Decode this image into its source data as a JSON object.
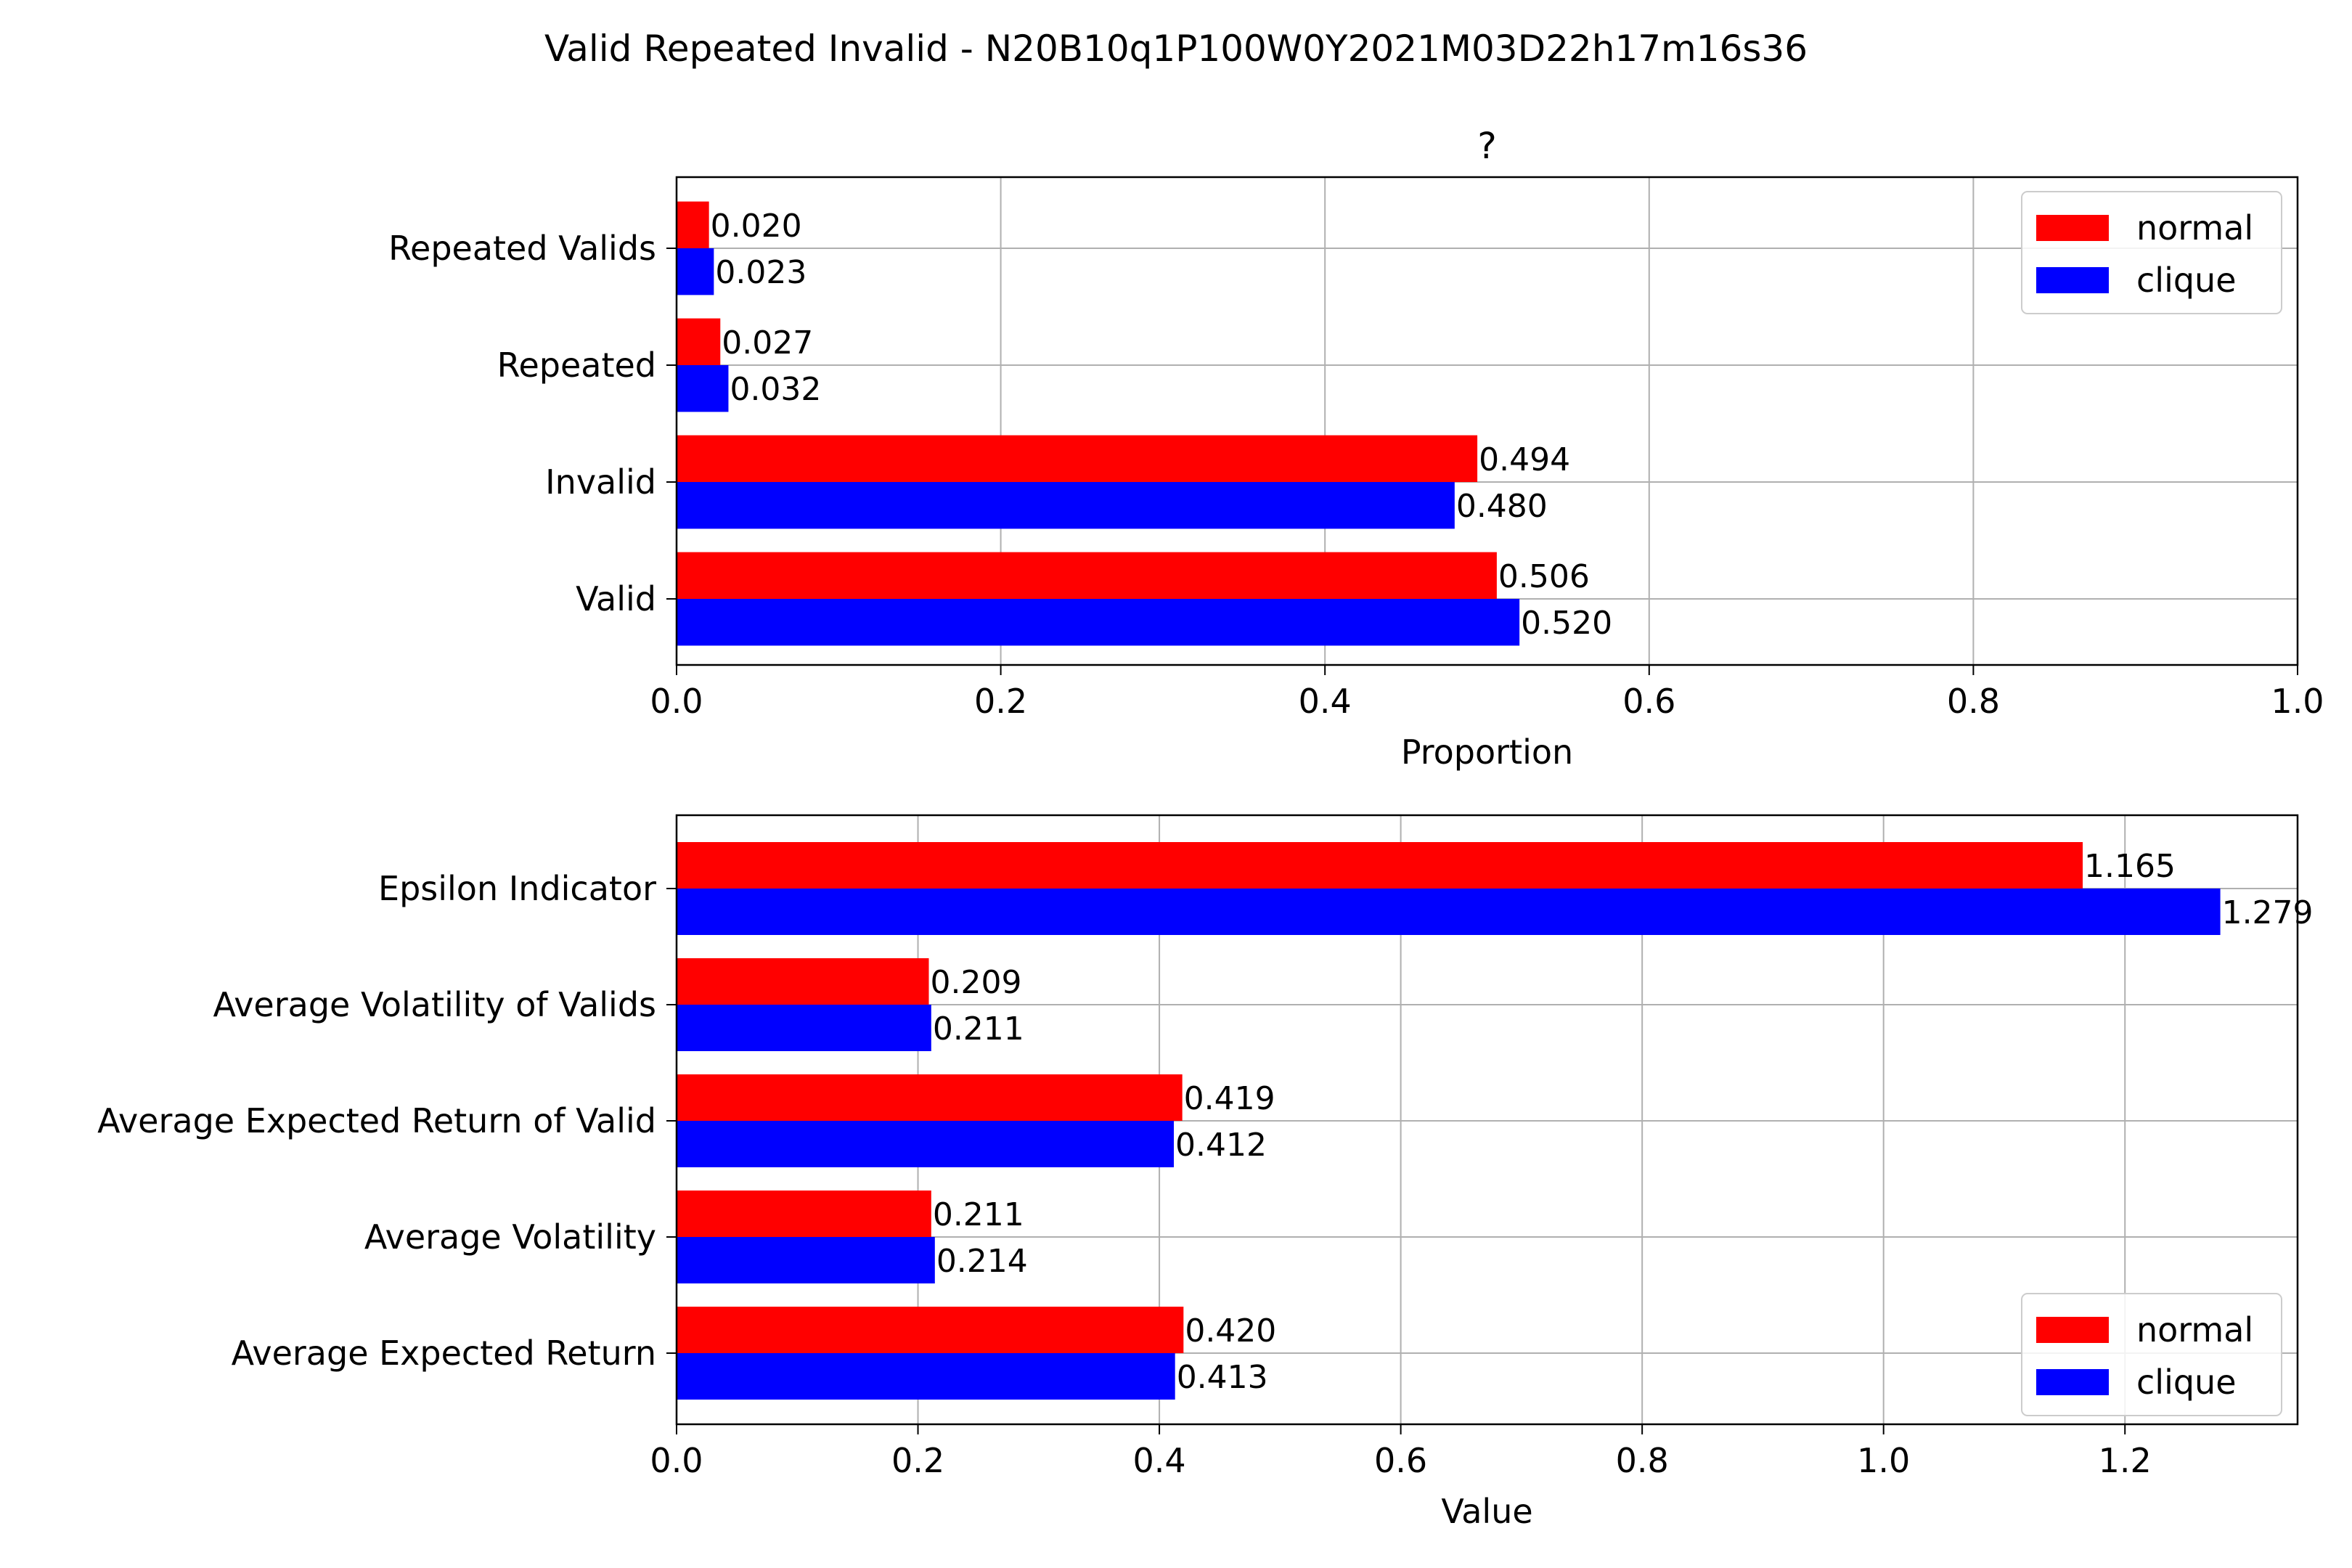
{
  "suptitle": "Valid Repeated Invalid - N20B10q1P100W0Y2021M03D22h17m16s36",
  "colors": {
    "normal": "#ff0000",
    "clique": "#0000ff",
    "grid": "#b0b0b0",
    "axis": "#000000"
  },
  "chart_data": [
    {
      "type": "bar",
      "orientation": "horizontal",
      "title": "?",
      "xlabel": "Proportion",
      "ylabel": "",
      "xlim": [
        0,
        1.0
      ],
      "xticks": [
        "0.0",
        "0.2",
        "0.4",
        "0.6",
        "0.8",
        "1.0"
      ],
      "grid": true,
      "legend": "top-right",
      "categories": [
        "Valid",
        "Invalid",
        "Repeated",
        "Repeated Valids"
      ],
      "series": [
        {
          "name": "normal",
          "color": "#ff0000",
          "values": [
            0.506,
            0.494,
            0.027,
            0.02
          ],
          "labels": [
            "0.506",
            "0.494",
            "0.027",
            "0.020"
          ]
        },
        {
          "name": "clique",
          "color": "#0000ff",
          "values": [
            0.52,
            0.48,
            0.032,
            0.023
          ],
          "labels": [
            "0.520",
            "0.480",
            "0.032",
            "0.023"
          ]
        }
      ]
    },
    {
      "type": "bar",
      "orientation": "horizontal",
      "title": "",
      "xlabel": "Value",
      "ylabel": "",
      "xlim": [
        0,
        1.343
      ],
      "xticks": [
        "0.0",
        "0.2",
        "0.4",
        "0.6",
        "0.8",
        "1.0",
        "1.2"
      ],
      "grid": true,
      "legend": "bottom-right",
      "categories": [
        "Average Expected Return",
        "Average Volatility",
        "Average Expected Return of Valid",
        "Average Volatility of Valids",
        "Epsilon Indicator"
      ],
      "series": [
        {
          "name": "normal",
          "color": "#ff0000",
          "values": [
            0.42,
            0.211,
            0.419,
            0.209,
            1.165
          ],
          "labels": [
            "0.420",
            "0.211",
            "0.419",
            "0.209",
            "1.165"
          ]
        },
        {
          "name": "clique",
          "color": "#0000ff",
          "values": [
            0.413,
            0.214,
            0.412,
            0.211,
            1.279
          ],
          "labels": [
            "0.413",
            "0.214",
            "0.412",
            "0.211",
            "1.279"
          ]
        }
      ]
    }
  ]
}
